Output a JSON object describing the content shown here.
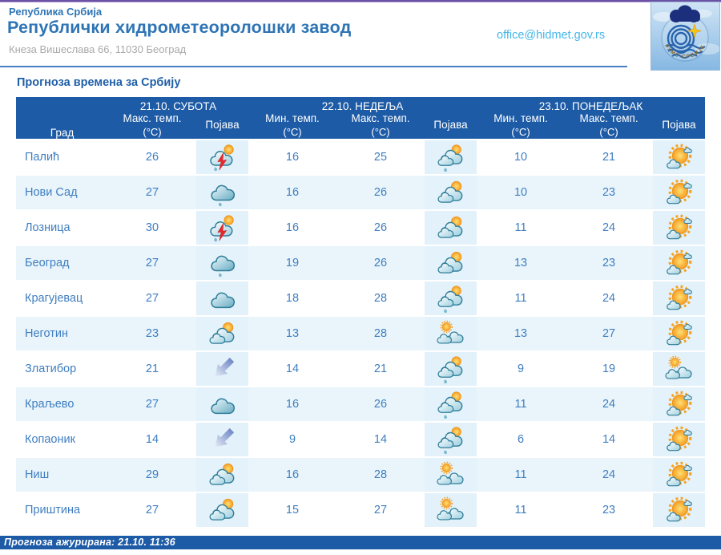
{
  "header": {
    "country": "Република Србија",
    "org": "Републички хидрометеоролошки завод",
    "address": "Кнеза Вишеслава 66, 11030 Београд",
    "email": "office@hidmet.gov.rs",
    "logo_text": "РХМЗ СРБИЈЕ"
  },
  "page_title": "Прогноза времена за Србију",
  "table": {
    "city_header": "Град",
    "unit": "(°C)",
    "col_max": "Макс. темп.",
    "col_min": "Мин. темп.",
    "col_phenomenon": "Појава",
    "day_groups": [
      {
        "label": "21.10. СУБОТА"
      },
      {
        "label": "22.10. НЕДЕЉА"
      },
      {
        "label": "23.10. ПОНЕДЕЉАК"
      }
    ],
    "rows": [
      {
        "city": "Палић",
        "d1_max": 26,
        "d1_icon": "storm-sun",
        "d2_min": 16,
        "d2_max": 25,
        "d2_icon": "cloud-sun-rain",
        "d3_min": 10,
        "d3_max": 21,
        "d3_icon": "sunny-cloud"
      },
      {
        "city": "Нови Сад",
        "d1_max": 27,
        "d1_icon": "rain-cloud",
        "d2_min": 16,
        "d2_max": 26,
        "d2_icon": "cloud-sun",
        "d3_min": 10,
        "d3_max": 23,
        "d3_icon": "sunny-cloud"
      },
      {
        "city": "Лозница",
        "d1_max": 30,
        "d1_icon": "storm-sun",
        "d2_min": 16,
        "d2_max": 26,
        "d2_icon": "cloud-sun",
        "d3_min": 11,
        "d3_max": 24,
        "d3_icon": "sunny-cloud"
      },
      {
        "city": "Београд",
        "d1_max": 27,
        "d1_icon": "rain-cloud",
        "d2_min": 19,
        "d2_max": 26,
        "d2_icon": "cloud-sun",
        "d3_min": 13,
        "d3_max": 23,
        "d3_icon": "sunny-cloud"
      },
      {
        "city": "Крагујевац",
        "d1_max": 27,
        "d1_icon": "cloud",
        "d2_min": 18,
        "d2_max": 28,
        "d2_icon": "cloud-sun-rain",
        "d3_min": 11,
        "d3_max": 24,
        "d3_icon": "sunny-cloud"
      },
      {
        "city": "Неготин",
        "d1_max": 23,
        "d1_icon": "cloud-sun",
        "d2_min": 13,
        "d2_max": 28,
        "d2_icon": "sun-clouds",
        "d3_min": 13,
        "d3_max": 27,
        "d3_icon": "sunny-cloud"
      },
      {
        "city": "Златибор",
        "d1_max": 21,
        "d1_icon": "arrow-down",
        "d2_min": 14,
        "d2_max": 21,
        "d2_icon": "cloud-sun-rain",
        "d3_min": 9,
        "d3_max": 19,
        "d3_icon": "sun-clouds"
      },
      {
        "city": "Краљево",
        "d1_max": 27,
        "d1_icon": "cloud",
        "d2_min": 16,
        "d2_max": 26,
        "d2_icon": "cloud-sun-rain",
        "d3_min": 11,
        "d3_max": 24,
        "d3_icon": "sunny-cloud"
      },
      {
        "city": "Копаоник",
        "d1_max": 14,
        "d1_icon": "arrow-down",
        "d2_min": 9,
        "d2_max": 14,
        "d2_icon": "cloud-sun-rain",
        "d3_min": 6,
        "d3_max": 14,
        "d3_icon": "sunny-cloud"
      },
      {
        "city": "Ниш",
        "d1_max": 29,
        "d1_icon": "cloud-sun",
        "d2_min": 16,
        "d2_max": 28,
        "d2_icon": "sun-clouds",
        "d3_min": 11,
        "d3_max": 24,
        "d3_icon": "sunny-cloud"
      },
      {
        "city": "Приштина",
        "d1_max": 27,
        "d1_icon": "cloud-sun",
        "d2_min": 15,
        "d2_max": 27,
        "d2_icon": "sun-clouds",
        "d3_min": 11,
        "d3_max": 23,
        "d3_icon": "sunny-cloud"
      }
    ]
  },
  "footer": {
    "updated": "Прогноза ажурирана:  21.10. 11:36"
  },
  "colors": {
    "header_blue": "#1d5ba6",
    "heading_blue": "#2e74b5",
    "text_blue": "#3f7ec0",
    "email_blue": "#45b6e8",
    "row_alt": "#e9f5fb",
    "icon_cell": "#e2f1fa",
    "top_bar_purple": "#6b51a3",
    "storm_red": "#e8272c",
    "sun_orange": "#f59b22"
  }
}
